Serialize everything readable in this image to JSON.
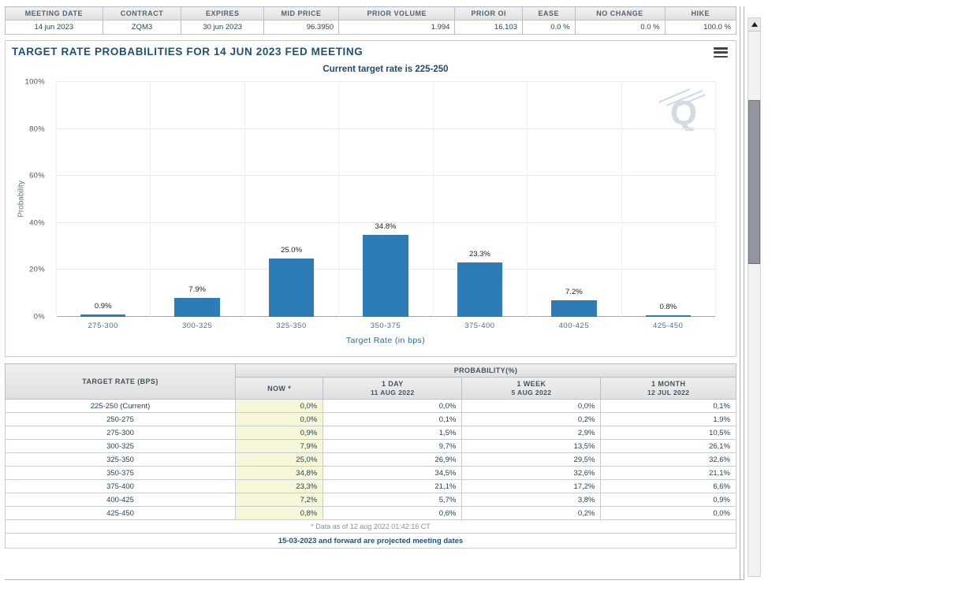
{
  "quote_strip": {
    "headers": [
      "MEETING DATE",
      "CONTRACT",
      "EXPIRES",
      "MID PRICE",
      "PRIOR VOLUME",
      "PRIOR OI",
      "EASE",
      "NO CHANGE",
      "HIKE"
    ],
    "values": [
      "14 jun 2023",
      "ZQM3",
      "30 jun 2023",
      "96.3950",
      "1.994",
      "16.103",
      "0.0 %",
      "0.0 %",
      "100.0 %"
    ]
  },
  "page": {
    "title": "TARGET RATE PROBABILITIES FOR 14 JUN 2023 FED MEETING"
  },
  "chart_data": {
    "type": "bar",
    "title": "TARGET RATE PROBABILITIES FOR 14 JUN 2023 FED MEETING",
    "subtitle": "Current target rate is 225-250",
    "categories": [
      "275-300",
      "300-325",
      "325-350",
      "350-375",
      "375-400",
      "400-425",
      "425-450"
    ],
    "values": [
      0.9,
      7.9,
      25.0,
      34.8,
      23.3,
      7.2,
      0.8
    ],
    "bar_labels": [
      "0.9%",
      "7.9%",
      "25.0%",
      "34.8%",
      "23.3%",
      "7.2%",
      "0.8%"
    ],
    "xlabel": "Target Rate (in bps)",
    "ylabel": "Probability",
    "ylim": [
      0,
      100
    ],
    "yticks": [
      0,
      20,
      40,
      60,
      80,
      100
    ],
    "ytick_labels": [
      "0%",
      "20%",
      "40%",
      "60%",
      "80%",
      "100%"
    ],
    "grid": true,
    "legend": "none",
    "bar_color": "#2e7cb5",
    "watermark": "Q"
  },
  "prob_table": {
    "rate_header": "TARGET RATE (BPS)",
    "group_header": "PROBABILITY(%)",
    "columns": [
      {
        "line1": "NOW *",
        "line2": ""
      },
      {
        "line1": "1 DAY",
        "line2": "11 AUG 2022"
      },
      {
        "line1": "1 WEEK",
        "line2": "5 AUG 2022"
      },
      {
        "line1": "1 MONTH",
        "line2": "12 JUL 2022"
      }
    ],
    "rows": [
      {
        "rate": "225-250 (Current)",
        "now": "0,0%",
        "day": "0,0%",
        "week": "0,0%",
        "month": "0,1%"
      },
      {
        "rate": "250-275",
        "now": "0,0%",
        "day": "0,1%",
        "week": "0,2%",
        "month": "1,9%"
      },
      {
        "rate": "275-300",
        "now": "0,9%",
        "day": "1,5%",
        "week": "2,9%",
        "month": "10,5%"
      },
      {
        "rate": "300-325",
        "now": "7,9%",
        "day": "9,7%",
        "week": "13,5%",
        "month": "26,1%"
      },
      {
        "rate": "325-350",
        "now": "25,0%",
        "day": "26,9%",
        "week": "29,5%",
        "month": "32,6%"
      },
      {
        "rate": "350-375",
        "now": "34,8%",
        "day": "34,5%",
        "week": "32,6%",
        "month": "21,1%"
      },
      {
        "rate": "375-400",
        "now": "23,3%",
        "day": "21,1%",
        "week": "17,2%",
        "month": "6,6%"
      },
      {
        "rate": "400-425",
        "now": "7,2%",
        "day": "5,7%",
        "week": "3,8%",
        "month": "0,9%"
      },
      {
        "rate": "425-450",
        "now": "0,8%",
        "day": "0,6%",
        "week": "0,2%",
        "month": "0,0%"
      }
    ],
    "footnote_data_asof": "* Data as of 12 aug 2022 01:42:16 CT",
    "footnote_projected": "15-03-2023 and forward are projected meeting dates",
    "now_col_bg": "#f6f6d8"
  }
}
